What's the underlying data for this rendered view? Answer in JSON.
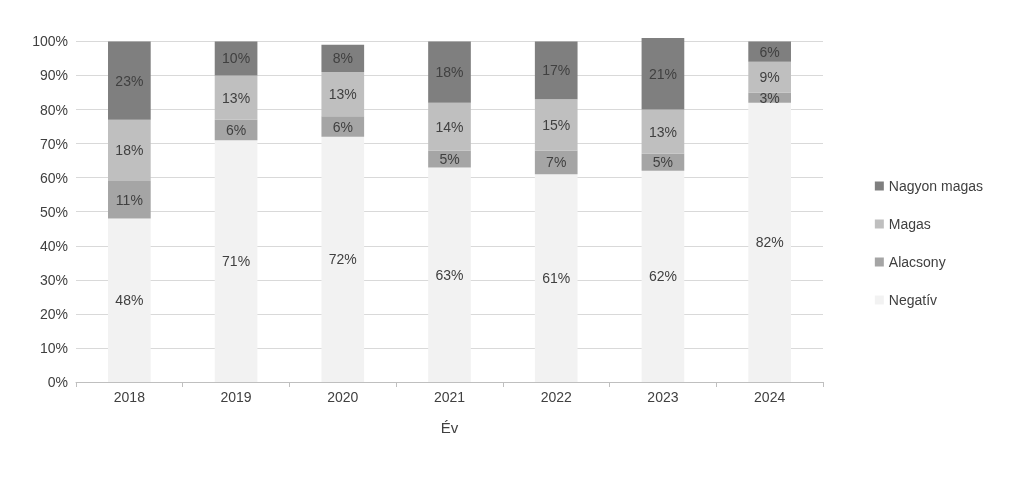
{
  "chart_data": {
    "type": "bar",
    "stacked": true,
    "xlabel": "Év",
    "categories": [
      "2018",
      "2019",
      "2020",
      "2021",
      "2022",
      "2023",
      "2024"
    ],
    "series": [
      {
        "name": "Negatív",
        "color": "#f2f2f2",
        "values": [
          48,
          71,
          72,
          63,
          61,
          62,
          82
        ],
        "value_labels": [
          "48%",
          "71%",
          "72%",
          "63%",
          "61%",
          "62%",
          "82%"
        ]
      },
      {
        "name": "Alacsony",
        "color": "#a5a5a5",
        "values": [
          11,
          6,
          6,
          5,
          7,
          5,
          3
        ],
        "value_labels": [
          "11%",
          "6%",
          "6%",
          "5%",
          "7%",
          "5%",
          "3%"
        ]
      },
      {
        "name": "Magas",
        "color": "#bfbfbf",
        "values": [
          18,
          13,
          13,
          14,
          15,
          13,
          9
        ],
        "value_labels": [
          "18%",
          "13%",
          "13%",
          "14%",
          "15%",
          "13%",
          "9%"
        ]
      },
      {
        "name": "Nagyon magas",
        "color": "#7f7f7f",
        "values": [
          23,
          10,
          8,
          18,
          17,
          21,
          6
        ],
        "value_labels": [
          "23%",
          "10%",
          "8%",
          "18%",
          "17%",
          "21%",
          "6%"
        ]
      }
    ],
    "ylim": [
      0,
      101
    ],
    "yticks": [
      {
        "value": 0,
        "label": "0%"
      },
      {
        "value": 10,
        "label": "10%"
      },
      {
        "value": 20,
        "label": "20%"
      },
      {
        "value": 30,
        "label": "30%"
      },
      {
        "value": 40,
        "label": "40%"
      },
      {
        "value": 50,
        "label": "50%"
      },
      {
        "value": 60,
        "label": "60%"
      },
      {
        "value": 70,
        "label": "70%"
      },
      {
        "value": 80,
        "label": "80%"
      },
      {
        "value": 90,
        "label": "90%"
      },
      {
        "value": 100,
        "label": "100%"
      }
    ],
    "grid": "y",
    "legend": "right"
  }
}
